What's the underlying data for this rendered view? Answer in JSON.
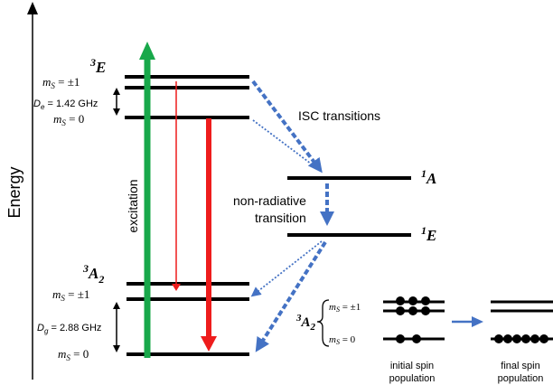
{
  "axis": {
    "label": "Energy"
  },
  "states": {
    "excited_triplet": {
      "base": "E",
      "sup": "3"
    },
    "singlet_a": {
      "base": "A",
      "sup": "1"
    },
    "singlet_e": {
      "base": "E",
      "sup": "1"
    },
    "ground_triplet": {
      "base": "A",
      "sub": "2",
      "sup": "3"
    }
  },
  "labels": {
    "ms_pm1_excited": {
      "m": "m",
      "s": "S",
      "rest": " = ±1"
    },
    "ms_0_excited": {
      "m": "m",
      "s": "S",
      "rest": " = 0"
    },
    "ms_pm1_ground": {
      "m": "m",
      "s": "S",
      "rest": " = ±1"
    },
    "ms_0_ground": {
      "m": "m",
      "s": "S",
      "rest": " = 0"
    },
    "de": {
      "d": "D",
      "sub": "e",
      "rest": " = 1.42 GHz"
    },
    "dg": {
      "d": "D",
      "sub": "g",
      "rest": " = 2.88 GHz"
    },
    "excitation": "excitation",
    "isc": "ISC transitions",
    "nonrad_line1": "non-radiative",
    "nonrad_line2": "transition"
  },
  "inset": {
    "state": {
      "base": "A",
      "sub": "2",
      "sup": "3"
    },
    "ms_pm1": {
      "m": "m",
      "s": "S",
      "rest": " = ±1"
    },
    "ms_0": {
      "m": "m",
      "s": "S",
      "rest": " = 0"
    },
    "initial_line1": "initial spin",
    "initial_line2": "population",
    "final_line1": "final spin",
    "final_line2": "population"
  },
  "colors": {
    "excitation_arrow": "#18a84a",
    "emission_arrow": "#ee1c1c",
    "transition_arrow": "#4472c4",
    "level": "#000000"
  }
}
